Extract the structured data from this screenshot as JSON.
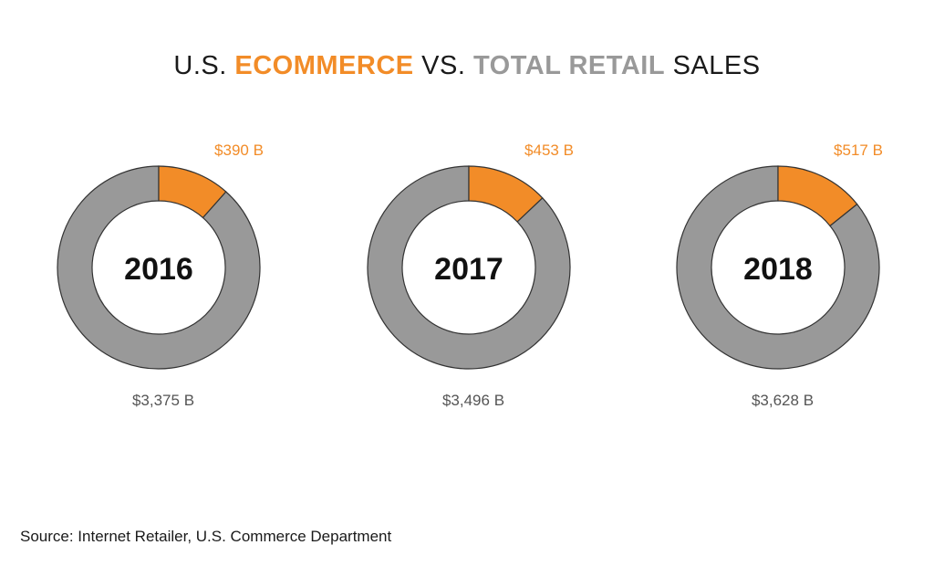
{
  "title": {
    "part1": "U.S. ",
    "highlight_ecommerce": "ECOMMERCE",
    "part2": " VS. ",
    "highlight_retail": "TOTAL RETAIL",
    "part3": " SALES"
  },
  "colors": {
    "ecommerce": "#f28c28",
    "total_retail": "#999999",
    "outline": "#333333",
    "title_text": "#1a1a1a",
    "value_text": "#555555"
  },
  "chart_data": [
    {
      "type": "pie",
      "center_label": "2016",
      "series": [
        {
          "name": "ECOMMERCE",
          "value": 390,
          "label": "$390 B"
        },
        {
          "name": "TOTAL RETAIL",
          "value": 3375,
          "label": "$3,375 B"
        }
      ]
    },
    {
      "type": "pie",
      "center_label": "2017",
      "series": [
        {
          "name": "ECOMMERCE",
          "value": 453,
          "label": "$453 B"
        },
        {
          "name": "TOTAL RETAIL",
          "value": 3496,
          "label": "$3,496 B"
        }
      ]
    },
    {
      "type": "pie",
      "center_label": "2018",
      "series": [
        {
          "name": "ECOMMERCE",
          "value": 517,
          "label": "$517 B"
        },
        {
          "name": "TOTAL RETAIL",
          "value": 3628,
          "label": "$3,628 B"
        }
      ]
    }
  ],
  "source": "Source: Internet Retailer, U.S. Commerce Department"
}
